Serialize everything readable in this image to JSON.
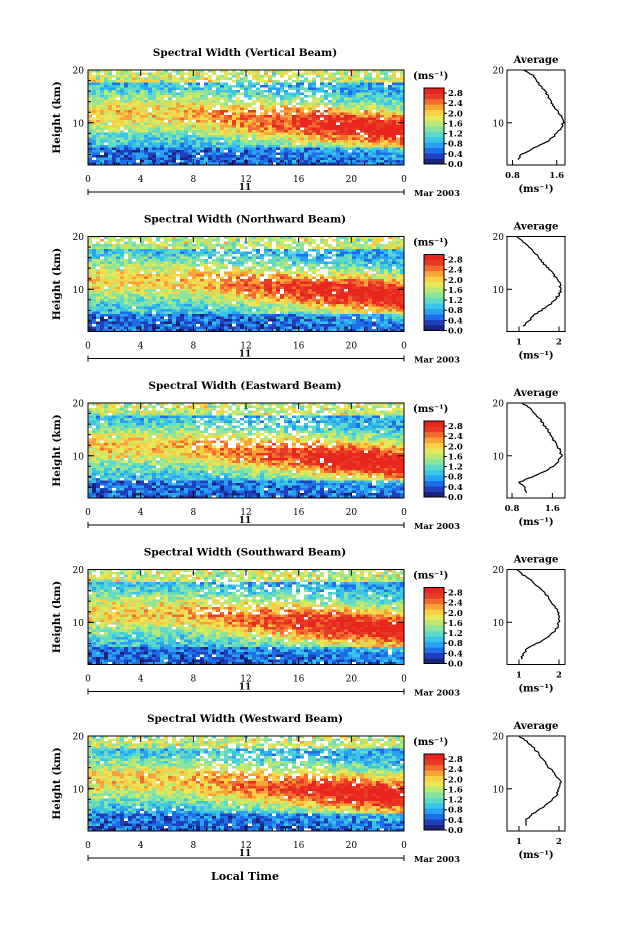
{
  "figure": {
    "xlabel_bottom": "Local Time",
    "date_label": "Mar 2003",
    "day_label": "11"
  },
  "colors": {
    "colormap": [
      "#1a237e",
      "#1f3fbf",
      "#1e6ee8",
      "#2aa0f0",
      "#39c6e6",
      "#5fd9c8",
      "#8be3a0",
      "#b9e874",
      "#e6e85a",
      "#f8cf45",
      "#f8a23a",
      "#f36b2f",
      "#e63c26",
      "#e8251f"
    ],
    "white": "#ffffff",
    "ink": "#000000"
  },
  "chart_data": [
    {
      "type": "heatmap",
      "title": "Spectral Width (Vertical Beam)",
      "ylabel": "Height (km)",
      "x_ticks": [
        "0",
        "4",
        "8",
        "12",
        "16",
        "20",
        "0"
      ],
      "y_ticks": [
        "20",
        "10"
      ],
      "xlim": [
        0,
        24
      ],
      "ylim": [
        2,
        20
      ],
      "colorbar": {
        "unit": "(ms⁻¹)",
        "ticks": [
          "2.8",
          "2.4",
          "2.0",
          "1.6",
          "1.2",
          "0.8",
          "0.4",
          "0.0"
        ],
        "range": [
          0,
          3.0
        ]
      },
      "average": {
        "title": "Average",
        "xlabel": "(ms⁻¹)",
        "x_ticks": [
          "0.8",
          "1.6"
        ],
        "xlim": [
          0.7,
          1.75
        ],
        "heights": [
          3,
          4,
          5,
          6,
          7,
          8,
          9,
          10,
          11,
          12,
          13,
          14,
          15,
          16,
          17,
          18,
          19,
          20
        ],
        "values": [
          0.9,
          0.95,
          1.15,
          1.35,
          1.5,
          1.6,
          1.68,
          1.72,
          1.7,
          1.62,
          1.55,
          1.5,
          1.45,
          1.38,
          1.3,
          1.25,
          1.18,
          1.0
        ]
      }
    },
    {
      "type": "heatmap",
      "title": "Spectral Width (Northward Beam)",
      "ylabel": "Height (km)",
      "x_ticks": [
        "0",
        "4",
        "8",
        "12",
        "16",
        "20",
        "0"
      ],
      "y_ticks": [
        "20",
        "10"
      ],
      "xlim": [
        0,
        24
      ],
      "ylim": [
        2,
        20
      ],
      "colorbar": {
        "unit": "(ms⁻¹)",
        "ticks": [
          "2.8",
          "2.4",
          "2.0",
          "1.6",
          "1.2",
          "0.8",
          "0.4",
          "0.0"
        ],
        "range": [
          0,
          3.0
        ]
      },
      "average": {
        "title": "Average",
        "xlabel": "(ms⁻¹)",
        "x_ticks": [
          "1",
          "2"
        ],
        "xlim": [
          0.7,
          2.15
        ],
        "heights": [
          3,
          4,
          5,
          6,
          7,
          8,
          9,
          10,
          11,
          12,
          13,
          14,
          15,
          16,
          17,
          18,
          19,
          20
        ],
        "values": [
          1.1,
          1.25,
          1.35,
          1.55,
          1.75,
          1.9,
          2.0,
          2.05,
          2.02,
          1.95,
          1.85,
          1.72,
          1.6,
          1.5,
          1.38,
          1.25,
          1.1,
          0.95
        ]
      }
    },
    {
      "type": "heatmap",
      "title": "Spectral Width (Eastward Beam)",
      "ylabel": "Height (km)",
      "x_ticks": [
        "0",
        "4",
        "8",
        "12",
        "16",
        "20",
        "0"
      ],
      "y_ticks": [
        "20",
        "10"
      ],
      "xlim": [
        0,
        24
      ],
      "ylim": [
        2,
        20
      ],
      "colorbar": {
        "unit": "(ms⁻¹)",
        "ticks": [
          "2.8",
          "2.4",
          "2.0",
          "1.6",
          "1.2",
          "0.8",
          "0.4",
          "0.0"
        ],
        "range": [
          0,
          3.0
        ]
      },
      "average": {
        "title": "Average",
        "xlabel": "(ms⁻¹)",
        "x_ticks": [
          "0.8",
          "1.6"
        ],
        "xlim": [
          0.7,
          1.85
        ],
        "heights": [
          3,
          4,
          5,
          6,
          7,
          8,
          9,
          10,
          11,
          12,
          13,
          14,
          15,
          16,
          17,
          18,
          19,
          20
        ],
        "values": [
          1.1,
          1.05,
          0.95,
          1.2,
          1.45,
          1.6,
          1.72,
          1.78,
          1.75,
          1.7,
          1.62,
          1.55,
          1.5,
          1.42,
          1.35,
          1.25,
          1.15,
          1.0
        ]
      }
    },
    {
      "type": "heatmap",
      "title": "Spectral Width (Southward Beam)",
      "ylabel": "Height (km)",
      "x_ticks": [
        "0",
        "4",
        "8",
        "12",
        "16",
        "20",
        "0"
      ],
      "y_ticks": [
        "20",
        "10"
      ],
      "xlim": [
        0,
        24
      ],
      "ylim": [
        2,
        20
      ],
      "colorbar": {
        "unit": "(ms⁻¹)",
        "ticks": [
          "2.8",
          "2.4",
          "2.0",
          "1.6",
          "1.2",
          "0.8",
          "0.4",
          "0.0"
        ],
        "range": [
          0,
          3.0
        ]
      },
      "average": {
        "title": "Average",
        "xlabel": "(ms⁻¹)",
        "x_ticks": [
          "1",
          "2"
        ],
        "xlim": [
          0.7,
          2.15
        ],
        "heights": [
          3,
          4,
          5,
          6,
          7,
          8,
          9,
          10,
          11,
          12,
          13,
          14,
          15,
          16,
          17,
          18,
          19,
          20
        ],
        "values": [
          1.05,
          1.1,
          1.2,
          1.45,
          1.7,
          1.85,
          1.95,
          2.0,
          2.02,
          1.98,
          1.9,
          1.8,
          1.7,
          1.6,
          1.45,
          1.3,
          1.1,
          0.95
        ]
      }
    },
    {
      "type": "heatmap",
      "title": "Spectral Width (Westward Beam)",
      "ylabel": "Height (km)",
      "x_ticks": [
        "0",
        "4",
        "8",
        "12",
        "16",
        "20",
        "0"
      ],
      "y_ticks": [
        "20",
        "10"
      ],
      "xlim": [
        0,
        24
      ],
      "ylim": [
        2,
        20
      ],
      "colorbar": {
        "unit": "(ms⁻¹)",
        "ticks": [
          "2.8",
          "2.4",
          "2.0",
          "1.6",
          "1.2",
          "0.8",
          "0.4",
          "0.0"
        ],
        "range": [
          0,
          3.0
        ]
      },
      "average": {
        "title": "Average",
        "xlabel": "(ms⁻¹)",
        "x_ticks": [
          "1",
          "2"
        ],
        "xlim": [
          0.7,
          2.15
        ],
        "heights": [
          3,
          4,
          5,
          6,
          7,
          8,
          9,
          10,
          11,
          12,
          13,
          14,
          15,
          16,
          17,
          18,
          19,
          20
        ],
        "values": [
          1.2,
          1.15,
          1.3,
          1.5,
          1.7,
          1.85,
          1.95,
          2.0,
          2.05,
          1.98,
          1.88,
          1.75,
          1.65,
          1.55,
          1.45,
          1.35,
          1.2,
          1.0
        ]
      }
    }
  ]
}
